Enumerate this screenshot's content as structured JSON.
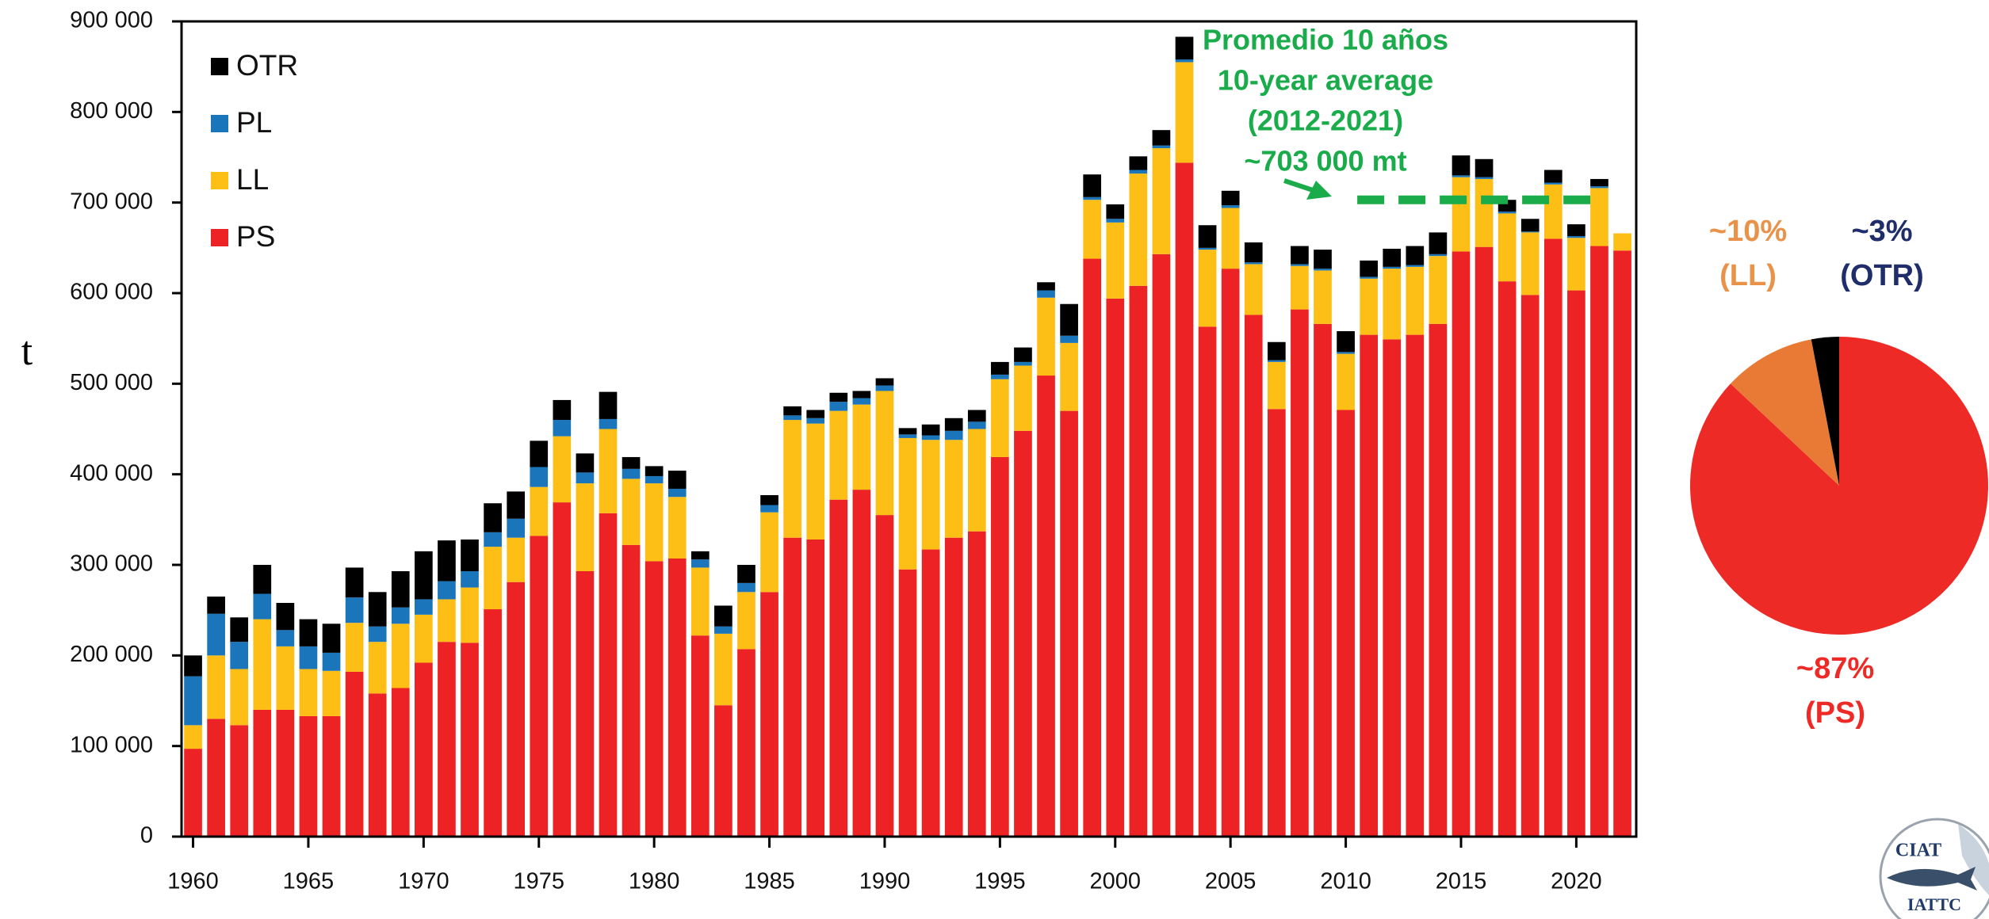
{
  "chart_data": [
    {
      "type": "bar",
      "stacked": true,
      "y_label": "t",
      "x": [
        1960,
        1961,
        1962,
        1963,
        1964,
        1965,
        1966,
        1967,
        1968,
        1969,
        1970,
        1971,
        1972,
        1973,
        1974,
        1975,
        1976,
        1977,
        1978,
        1979,
        1980,
        1981,
        1982,
        1983,
        1984,
        1985,
        1986,
        1987,
        1988,
        1989,
        1990,
        1991,
        1992,
        1993,
        1994,
        1995,
        1996,
        1997,
        1998,
        1999,
        2000,
        2001,
        2002,
        2003,
        2004,
        2005,
        2006,
        2007,
        2008,
        2009,
        2010,
        2011,
        2012,
        2013,
        2014,
        2015,
        2016,
        2017,
        2018,
        2019,
        2020,
        2021,
        2022
      ],
      "xlim": [
        1959.5,
        2022.6
      ],
      "xticks": [
        1960,
        1965,
        1970,
        1975,
        1980,
        1985,
        1990,
        1995,
        2000,
        2005,
        2010,
        2015,
        2020
      ],
      "ylim": [
        0,
        900000
      ],
      "yticks": [
        0,
        {
          "value": 100000,
          "label": "100 000"
        },
        {
          "value": 200000,
          "label": "200 000"
        },
        {
          "value": 300000,
          "label": "300 000"
        },
        {
          "value": 400000,
          "label": "400 000"
        },
        {
          "value": 500000,
          "label": "500 000"
        },
        {
          "value": 600000,
          "label": "600 000"
        },
        {
          "value": 700000,
          "label": "700 000"
        },
        {
          "value": 800000,
          "label": "800 000"
        },
        {
          "value": 900000,
          "label": "900 000"
        }
      ],
      "legend": "upper left",
      "series": [
        {
          "name": "PS",
          "color": "#ed2224",
          "values": [
            97000,
            130000,
            123000,
            140000,
            140000,
            133000,
            133000,
            182000,
            158000,
            164000,
            192000,
            215000,
            214000,
            251000,
            281000,
            332000,
            369000,
            293000,
            357000,
            322000,
            304000,
            307000,
            222000,
            145000,
            207000,
            270000,
            330000,
            328000,
            372000,
            383000,
            355000,
            295000,
            317000,
            330000,
            337000,
            419000,
            448000,
            509000,
            470000,
            638000,
            594000,
            608000,
            643000,
            744000,
            563000,
            627000,
            576000,
            472000,
            582000,
            566000,
            471000,
            554000,
            549000,
            554000,
            566000,
            646000,
            651000,
            613000,
            598000,
            660000,
            603000,
            652000,
            647000
          ]
        },
        {
          "name": "LL",
          "color": "#fdbf16",
          "values": [
            26000,
            70000,
            62000,
            100000,
            70000,
            52000,
            50000,
            54000,
            57000,
            71000,
            53000,
            47000,
            61000,
            69000,
            49000,
            54000,
            73000,
            97000,
            93000,
            73000,
            86000,
            68000,
            75000,
            79000,
            63000,
            88000,
            130000,
            128000,
            98000,
            94000,
            137000,
            145000,
            121000,
            108000,
            113000,
            86000,
            72000,
            86000,
            75000,
            65000,
            84000,
            124000,
            117000,
            111000,
            85000,
            67000,
            56000,
            52000,
            48000,
            59000,
            62000,
            62000,
            78000,
            75000,
            75000,
            82000,
            75000,
            75000,
            69000,
            60000,
            58000,
            64000,
            19000
          ]
        },
        {
          "name": "PL",
          "color": "#1b75bb",
          "values": [
            54000,
            46000,
            30000,
            28000,
            18000,
            25000,
            20000,
            28000,
            17000,
            18000,
            17000,
            20000,
            18000,
            16000,
            21000,
            22000,
            18000,
            12000,
            11000,
            11000,
            8000,
            9000,
            9000,
            8000,
            10000,
            8000,
            5000,
            6000,
            10000,
            7000,
            6000,
            4000,
            5000,
            10000,
            8000,
            5000,
            4000,
            8000,
            8000,
            3000,
            4000,
            4000,
            3000,
            3000,
            2000,
            3000,
            2000,
            2000,
            2000,
            2000,
            2000,
            2000,
            2000,
            2000,
            2000,
            2000,
            2000,
            2000,
            1000,
            2000,
            2000,
            2000,
            0
          ]
        },
        {
          "name": "OTR",
          "color": "#000000",
          "values": [
            23000,
            19000,
            27000,
            32000,
            30000,
            30000,
            32000,
            33000,
            38000,
            40000,
            53000,
            45000,
            35000,
            32000,
            30000,
            29000,
            22000,
            21000,
            30000,
            13000,
            11000,
            20000,
            9000,
            23000,
            20000,
            11000,
            10000,
            9000,
            10000,
            8000,
            8000,
            7000,
            12000,
            14000,
            13000,
            14000,
            16000,
            9000,
            35000,
            25000,
            16000,
            15000,
            17000,
            25000,
            25000,
            16000,
            22000,
            20000,
            20000,
            21000,
            23000,
            18000,
            20000,
            21000,
            24000,
            22000,
            20000,
            13000,
            14000,
            14000,
            13000,
            8000,
            0
          ]
        }
      ],
      "annotation": {
        "lines": [
          "Promedio 10 años",
          "10-year average",
          "(2012-2021)",
          "~703 000 mt"
        ],
        "color": "#1aab4a",
        "reference": {
          "value": 703000,
          "x": [
            2010.5,
            2021
          ]
        }
      }
    },
    {
      "type": "pie",
      "categories": [
        "(PS)",
        "(LL)",
        "(OTR)"
      ],
      "values": [
        87,
        10,
        3
      ],
      "value_labels": [
        "~87%",
        "~10%",
        "~3%"
      ],
      "colors": [
        "#ee2a26",
        "#e97a35",
        "#000000"
      ],
      "label_colors": [
        "#ee2a26",
        "#e8924a",
        "#1f2d6b"
      ]
    }
  ],
  "logo": {
    "top": "CIAT",
    "bottom": "IATTC"
  }
}
